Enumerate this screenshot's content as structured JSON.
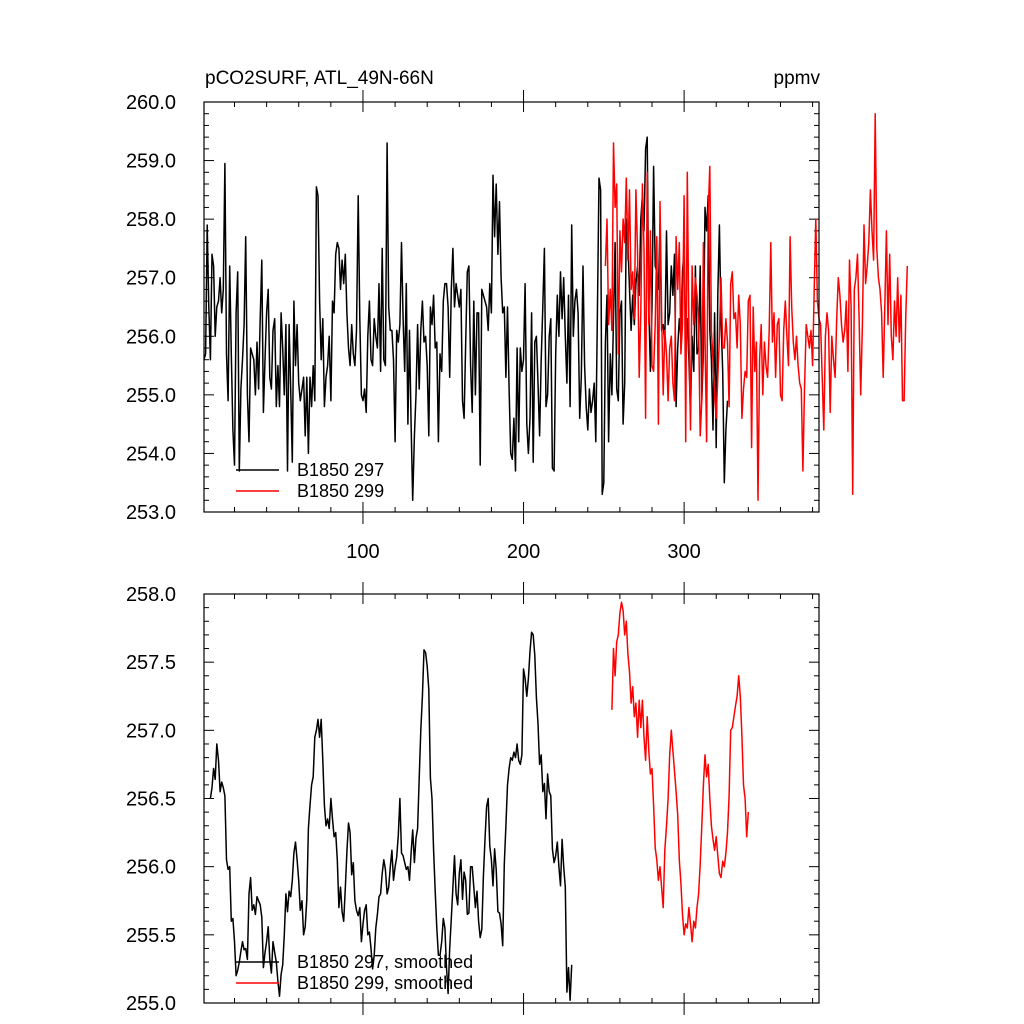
{
  "chart_data": [
    {
      "type": "line",
      "title_left": "pCO2SURF, ATL_49N-66N",
      "title_right": "ppmv",
      "xlabel": "",
      "ylabel": "",
      "xlim": [
        1,
        384
      ],
      "ylim": [
        253.0,
        260.0
      ],
      "y_ticks": [
        "253.0",
        "254.0",
        "255.0",
        "256.0",
        "257.0",
        "258.0",
        "259.0",
        "260.0"
      ],
      "x_ticks": [
        "100",
        "200",
        "300"
      ],
      "legend_position": "bottom-left",
      "series": [
        {
          "name": "B1850 297",
          "color": "#000000",
          "x_start": 1,
          "values": [
            255.6,
            255.7,
            257.9,
            256.5,
            255.6,
            257.4,
            257.2,
            256.0,
            256.5,
            256.6,
            257.0,
            256.4,
            256.8,
            258.95,
            255.7,
            254.9,
            257.2,
            255.7,
            254.4,
            253.8,
            256.4,
            257.1,
            253.7,
            255.1,
            255.6,
            256.2,
            257.7,
            255.0,
            254.2,
            255.8,
            255.7,
            255.6,
            255.0,
            255.9,
            255.1,
            256.3,
            257.3,
            254.7,
            255.6,
            256.4,
            256.8,
            255.3,
            255.1,
            256.1,
            256.3,
            254.8,
            255.5,
            254.8,
            256.4,
            255.8,
            255.0,
            256.2,
            253.7,
            256.2,
            255.1,
            253.85,
            256.6,
            255.5,
            256.2,
            255.2,
            254.9,
            255.1,
            255.3,
            254.3,
            255.3,
            254.0,
            255.3,
            254.8,
            255.5,
            254.9,
            258.55,
            258.4,
            256.6,
            255.6,
            256.3,
            254.8,
            255.3,
            255.5,
            256.0,
            254.9,
            256.6,
            256.4,
            257.4,
            257.6,
            257.5,
            256.8,
            257.3,
            256.9,
            257.4,
            256.4,
            255.8,
            255.5,
            256.2,
            255.7,
            255.5,
            256.1,
            258.4,
            256.3,
            255.0,
            254.9,
            255.1,
            254.7,
            256.0,
            256.6,
            255.6,
            255.5,
            256.3,
            256.0,
            255.8,
            256.9,
            255.4,
            257.5,
            255.6,
            255.5,
            259.3,
            256.5,
            256.1,
            256.1,
            255.6,
            254.2,
            256.1,
            255.9,
            256.2,
            257.6,
            256.3,
            255.4,
            256.9,
            254.5,
            256.1,
            254.5,
            253.2,
            254.3,
            255.0,
            256.2,
            255.1,
            256.1,
            256.6,
            255.9,
            256.0,
            255.5,
            254.3,
            256.5,
            256.2,
            256.7,
            255.8,
            255.9,
            254.2,
            255.7,
            255.4,
            256.6,
            256.9,
            256.9,
            256.5,
            255.3,
            256.8,
            257.5,
            256.5,
            256.9,
            256.7,
            256.5,
            256.8,
            254.9,
            254.6,
            255.9,
            257.1,
            257.2,
            255.5,
            254.7,
            256.6,
            255.0,
            256.4,
            256.4,
            253.8,
            256.8,
            256.7,
            256.6,
            256.5,
            256.1,
            256.9,
            256.4,
            258.75,
            257.7,
            258.6,
            257.4,
            258.3,
            257.0,
            256.4,
            256.5,
            255.3,
            256.5,
            255.1,
            254.0,
            253.9,
            254.6,
            253.7,
            255.8,
            254.2,
            255.8,
            255.4,
            255.6,
            256.9,
            254.5,
            254.0,
            254.6,
            256.4,
            253.85,
            255.9,
            256.0,
            255.2,
            254.3,
            255.6,
            256.5,
            257.5,
            254.8,
            255.0,
            256.0,
            256.3,
            253.75,
            253.7,
            255.7,
            256.7,
            256.0,
            257.1,
            256.3,
            257.0,
            256.0,
            255.2,
            256.7,
            254.8,
            257.9,
            256.0,
            256.6,
            256.8,
            256.4,
            254.6,
            255.3,
            257.2,
            255.5,
            254.8,
            254.4,
            255.1,
            254.7,
            254.9,
            255.2,
            254.2,
            256.4,
            258.7,
            258.5,
            253.3,
            253.5,
            255.9,
            256.7,
            254.2,
            255.7,
            255.0,
            256.3,
            257.6,
            255.1,
            254.9,
            256.4,
            256.6,
            254.5,
            255.2,
            258.0,
            257.6,
            256.8,
            256.1,
            256.7,
            256.2,
            256.9,
            257.2,
            256.7,
            258.0,
            258.4,
            257.8,
            259.2,
            259.4,
            256.5,
            255.4,
            256.5,
            258.9,
            257.2,
            257.1,
            256.8,
            257.9,
            256.1,
            256.2,
            255.9,
            257.8,
            256.2,
            256.4,
            257.2,
            256.7,
            257.4,
            254.8,
            255.8,
            256.3,
            256.0,
            257.1,
            257.5,
            256.0,
            256.3,
            255.6,
            254.7,
            256.0,
            255.4,
            257.2,
            255.7,
            255.8,
            257.2,
            254.9,
            255.8,
            258.2,
            257.8,
            258.4,
            256.1,
            255.6,
            254.4,
            256.4,
            254.1,
            256.7,
            257.9,
            256.3,
            255.4,
            253.5,
            254.4,
            254.9
          ]
        },
        {
          "name": "B1850 299",
          "color": "#ff0000",
          "x_start": 251,
          "values": [
            257.2,
            258.0,
            256.2,
            256.8,
            256.1,
            259.3,
            258.2,
            258.6,
            255.7,
            257.8,
            257.1,
            258.0,
            257.6,
            258.7,
            257.3,
            258.5,
            256.8,
            257.1,
            256.3,
            258.5,
            257.4,
            255.3,
            256.4,
            258.6,
            257.5,
            254.6,
            258.8,
            256.2,
            257.8,
            255.5,
            255.4,
            256.2,
            257.7,
            254.5,
            258.3,
            256.4,
            255.0,
            256.1,
            255.7,
            254.9,
            255.8,
            256.0,
            255.2,
            254.9,
            257.7,
            256.8,
            257.6,
            255.7,
            256.2,
            258.4,
            254.2,
            258.8,
            256.1,
            254.4,
            257.2,
            256.2,
            257.0,
            256.7,
            256.2,
            254.3,
            254.9,
            257.6,
            256.0,
            254.2,
            258.1,
            258.9,
            256.1,
            255.6,
            255.0,
            254.6,
            255.3,
            256.0,
            257.0,
            255.8,
            255.8,
            256.3,
            255.9,
            254.8,
            256.9,
            257.1,
            256.3,
            256.4,
            255.8,
            256.7,
            256.2,
            254.6,
            255.1,
            255.4,
            255.3,
            256.6,
            256.7,
            254.1,
            256.5,
            255.4,
            255.9,
            253.2,
            255.6,
            256.2,
            255.0,
            255.9,
            255.5,
            255.3,
            256.1,
            257.6,
            255.9,
            256.4,
            255.3,
            256.2,
            256.3,
            255.0,
            254.9,
            256.1,
            256.6,
            256.0,
            255.5,
            257.7,
            256.5,
            255.9,
            255.6,
            256.0,
            255.5,
            255.2,
            255.1,
            253.7,
            255.1,
            256.2,
            256.0,
            255.8,
            256.1,
            255.5,
            256.8,
            258.0,
            256.6,
            256.3,
            256.2,
            255.3,
            254.4,
            256.0,
            256.4,
            256.1,
            254.7,
            256.0,
            255.6,
            255.3,
            256.3,
            257.0,
            256.7,
            256.2,
            255.9,
            256.1,
            256.6,
            255.4,
            257.3,
            256.5,
            253.3,
            256.8,
            257.0,
            257.4,
            256.3,
            255.0,
            256.2,
            257.9,
            256.9,
            257.2,
            257.6,
            258.5,
            257.8,
            257.3,
            259.8,
            257.5,
            257.0,
            256.8,
            256.4,
            255.3,
            256.5,
            257.8,
            256.2,
            257.4,
            256.0,
            255.6,
            256.6,
            256.0,
            257.0,
            255.9,
            256.7,
            254.9,
            254.9,
            256.3,
            257.2
          ]
        }
      ]
    },
    {
      "type": "line",
      "xlabel": "",
      "ylabel": "",
      "xlim": [
        1,
        384
      ],
      "ylim": [
        255.0,
        258.0
      ],
      "y_ticks": [
        "255.0",
        "255.5",
        "256.0",
        "256.5",
        "257.0",
        "257.5",
        "258.0"
      ],
      "legend_position": "bottom-left",
      "series": [
        {
          "name": "B1850 297, smoothed",
          "color": "#000000",
          "x_start": 5,
          "values": [
            256.5,
            256.58,
            256.72,
            256.64,
            256.9,
            256.78,
            256.55,
            256.62,
            256.58,
            256.52,
            256.05,
            255.98,
            256.0,
            255.6,
            255.62,
            255.45,
            255.2,
            255.24,
            255.3,
            255.38,
            255.45,
            255.39,
            255.4,
            255.32,
            255.8,
            255.92,
            255.68,
            255.72,
            255.65,
            255.78,
            255.75,
            255.72,
            255.63,
            255.26,
            255.37,
            255.45,
            255.56,
            255.32,
            255.22,
            255.45,
            255.37,
            255.3,
            255.16,
            255.05,
            255.21,
            255.28,
            255.5,
            255.8,
            255.67,
            255.82,
            255.78,
            255.9,
            256.1,
            256.18,
            256.05,
            255.9,
            255.68,
            255.75,
            255.5,
            255.56,
            255.76,
            256.28,
            256.45,
            256.6,
            256.66,
            256.95,
            257.0,
            257.08,
            256.95,
            257.08,
            256.78,
            256.45,
            256.3,
            256.35,
            256.28,
            256.5,
            256.35,
            256.22,
            256.25,
            256.05,
            255.7,
            255.85,
            255.67,
            255.6,
            255.84,
            256.11,
            256.32,
            256.25,
            255.94,
            256.03,
            255.75,
            255.68,
            255.64,
            255.7,
            255.45,
            255.58,
            255.68,
            255.72,
            255.5,
            255.52,
            255.4,
            255.25,
            255.35,
            255.55,
            255.65,
            255.78,
            255.8,
            255.95,
            256.05,
            255.98,
            255.8,
            255.85,
            256.0,
            256.12,
            255.9,
            256.0,
            256.07,
            256.23,
            256.5,
            256.1,
            256.08,
            256.03,
            255.98,
            256.0,
            255.9,
            256.1,
            256.27,
            256.03,
            256.21,
            256.28,
            256.65,
            257.0,
            257.25,
            257.59,
            257.57,
            257.47,
            257.3,
            256.65,
            256.5,
            256.12,
            255.82,
            255.55,
            255.35,
            255.35,
            255.45,
            255.62,
            255.55,
            255.26,
            255.07,
            255.4,
            255.62,
            255.85,
            256.08,
            255.8,
            255.72,
            255.95,
            256.05,
            255.76,
            255.96,
            255.9,
            255.65,
            255.66,
            256.0,
            256.0,
            255.85,
            255.7,
            255.82,
            255.6,
            255.48,
            255.54,
            255.93,
            256.2,
            256.44,
            256.5,
            256.15,
            256.05,
            255.86,
            256.13,
            255.98,
            255.67,
            255.66,
            255.58,
            255.42,
            256.02,
            256.3,
            256.6,
            256.72,
            256.8,
            256.78,
            256.84,
            256.8,
            256.9,
            256.78,
            256.75,
            256.82,
            257.45,
            257.38,
            257.25,
            257.38,
            257.58,
            257.72,
            257.7,
            257.55,
            257.24,
            257.05,
            256.75,
            256.82,
            256.55,
            256.61,
            256.35,
            256.68,
            256.55,
            256.52,
            256.13,
            256.03,
            256.08,
            256.18,
            256.0,
            255.86,
            256.2,
            256.0,
            255.85,
            255.08,
            255.26,
            255.02,
            255.28
          ]
        },
        {
          "name": "B1850 299, smoothed",
          "color": "#ff0000",
          "x_start": 255,
          "values": [
            257.15,
            257.6,
            257.4,
            257.65,
            257.7,
            257.86,
            257.94,
            257.88,
            257.7,
            257.8,
            257.56,
            257.43,
            257.2,
            257.32,
            257.1,
            257.2,
            256.95,
            257.22,
            257.02,
            257.22,
            256.95,
            256.78,
            257.1,
            256.85,
            256.68,
            256.72,
            256.45,
            256.14,
            256.05,
            255.9,
            256.0,
            255.85,
            255.7,
            256.12,
            256.3,
            256.5,
            256.82,
            257.0,
            256.85,
            256.7,
            256.55,
            256.38,
            256.05,
            255.88,
            255.65,
            255.5,
            255.58,
            255.55,
            255.7,
            255.58,
            255.45,
            255.6,
            255.55,
            255.7,
            255.8,
            256.02,
            256.3,
            256.6,
            256.82,
            256.66,
            256.75,
            256.5,
            256.3,
            256.2,
            256.12,
            256.22,
            256.08,
            255.95,
            255.92,
            256.04,
            256.0,
            256.1,
            256.25,
            256.52,
            257.0,
            257.02,
            257.1,
            257.18,
            257.25,
            257.4,
            257.25,
            256.96,
            256.6,
            256.5,
            256.22,
            256.4
          ]
        }
      ]
    }
  ]
}
